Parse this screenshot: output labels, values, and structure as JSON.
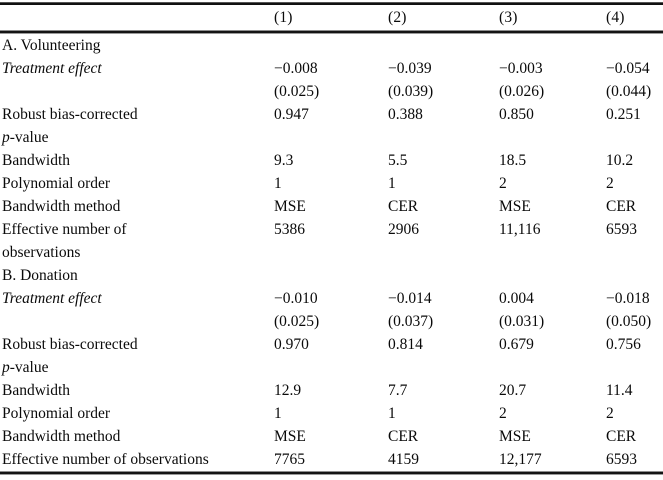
{
  "table": {
    "columns": [
      "(1)",
      "(2)",
      "(3)",
      "(4)"
    ],
    "panels": [
      {
        "title": "A. Volunteering",
        "rows": [
          {
            "label": "Treatment effect",
            "italic": "all",
            "values": [
              "−0.008",
              "−0.039",
              "−0.003",
              "−0.054"
            ]
          },
          {
            "label": "",
            "values": [
              "(0.025)",
              "(0.039)",
              "(0.026)",
              "(0.044)"
            ]
          },
          {
            "label": "Robust bias-corrected",
            "values": [
              "0.947",
              "0.388",
              "0.850",
              "0.251"
            ]
          },
          {
            "label": "p-value",
            "italic": "prefix",
            "values": [
              "",
              "",
              "",
              ""
            ]
          },
          {
            "label": "Bandwidth",
            "values": [
              "9.3",
              "5.5",
              "18.5",
              "10.2"
            ]
          },
          {
            "label": "Polynomial order",
            "values": [
              "1",
              "1",
              "2",
              "2"
            ]
          },
          {
            "label": "Bandwidth method",
            "values": [
              "MSE",
              "CER",
              "MSE",
              "CER"
            ]
          },
          {
            "label": "Effective number of",
            "values": [
              "5386",
              "2906",
              "11,116",
              "6593"
            ]
          },
          {
            "label": "observations",
            "values": [
              "",
              "",
              "",
              ""
            ]
          }
        ]
      },
      {
        "title": "B. Donation",
        "rows": [
          {
            "label": "Treatment effect",
            "italic": "all",
            "values": [
              "−0.010",
              "−0.014",
              "0.004",
              "−0.018"
            ]
          },
          {
            "label": "",
            "values": [
              "(0.025)",
              "(0.037)",
              "(0.031)",
              "(0.050)"
            ]
          },
          {
            "label": "Robust bias-corrected",
            "values": [
              "0.970",
              "0.814",
              "0.679",
              "0.756"
            ]
          },
          {
            "label": "p-value",
            "italic": "prefix",
            "values": [
              "",
              "",
              "",
              ""
            ]
          },
          {
            "label": "Bandwidth",
            "values": [
              "12.9",
              "7.7",
              "20.7",
              "11.4"
            ]
          },
          {
            "label": "Polynomial order",
            "values": [
              "1",
              "1",
              "2",
              "2"
            ]
          },
          {
            "label": "Bandwidth method",
            "values": [
              "MSE",
              "CER",
              "MSE",
              "CER"
            ]
          },
          {
            "label": "Effective number of observations",
            "values": [
              "7765",
              "4159",
              "12,177",
              "6593"
            ]
          }
        ]
      }
    ]
  }
}
